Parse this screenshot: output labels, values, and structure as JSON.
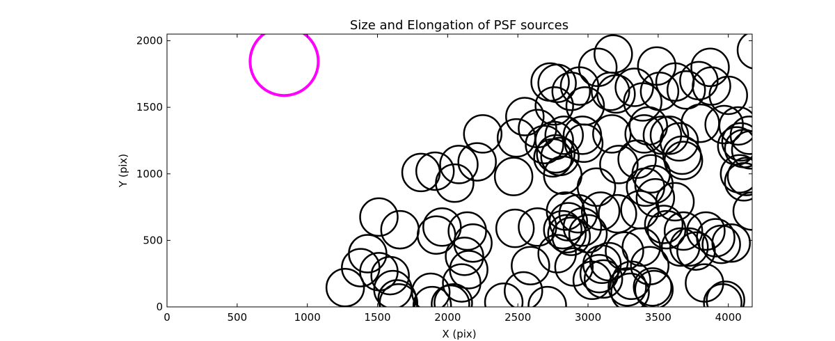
{
  "chart_data": {
    "type": "scatter",
    "title": "Size and Elongation of PSF sources",
    "xlabel": "X (pix)",
    "ylabel": "Y (pix)",
    "xlim": [
      0,
      4170
    ],
    "ylim": [
      0,
      2050
    ],
    "xticks": [
      0,
      500,
      1000,
      1500,
      2000,
      2500,
      3000,
      3500,
      4000
    ],
    "yticks": [
      0,
      500,
      1000,
      1500,
      2000
    ],
    "grid": false,
    "marker": "open-circle",
    "series": [
      {
        "color": "#000000",
        "points": [
          [
            1270,
            145
          ],
          [
            1380,
            295
          ],
          [
            1430,
            400
          ],
          [
            1510,
            675
          ],
          [
            1510,
            265
          ],
          [
            1590,
            235
          ],
          [
            1610,
            130
          ],
          [
            1640,
            60
          ],
          [
            1650,
            30
          ],
          [
            1660,
            580
          ],
          [
            1810,
            1010
          ],
          [
            1880,
            110
          ],
          [
            1890,
            10
          ],
          [
            1910,
            1020
          ],
          [
            1920,
            540
          ],
          [
            1960,
            600
          ],
          [
            2020,
            20
          ],
          [
            2040,
            30
          ],
          [
            2050,
            930
          ],
          [
            2080,
            1070
          ],
          [
            2100,
            180
          ],
          [
            2120,
            380
          ],
          [
            2140,
            570
          ],
          [
            2150,
            280
          ],
          [
            2180,
            480
          ],
          [
            2210,
            1090
          ],
          [
            2250,
            1300
          ],
          [
            2400,
            35
          ],
          [
            2470,
            980
          ],
          [
            2480,
            590
          ],
          [
            2490,
            1270
          ],
          [
            2540,
            120
          ],
          [
            2550,
            1430
          ],
          [
            2590,
            310
          ],
          [
            2640,
            1340
          ],
          [
            2640,
            600
          ],
          [
            2690,
            1220
          ],
          [
            2710,
            10
          ],
          [
            2730,
            1690
          ],
          [
            2750,
            1120
          ],
          [
            2760,
            1250
          ],
          [
            2770,
            1150
          ],
          [
            2760,
            1510
          ],
          [
            2780,
            400
          ],
          [
            2780,
            1680
          ],
          [
            2800,
            1130
          ],
          [
            2820,
            580
          ],
          [
            2820,
            990
          ],
          [
            2830,
            1290
          ],
          [
            2840,
            720
          ],
          [
            2850,
            550
          ],
          [
            2860,
            640
          ],
          [
            2880,
            530
          ],
          [
            2880,
            1620
          ],
          [
            2900,
            300
          ],
          [
            2930,
            700
          ],
          [
            2940,
            1660
          ],
          [
            2960,
            600
          ],
          [
            2960,
            1290
          ],
          [
            2970,
            1230
          ],
          [
            2980,
            1510
          ],
          [
            3000,
            550
          ],
          [
            3030,
            200
          ],
          [
            3060,
            900
          ],
          [
            3070,
            1800
          ],
          [
            3080,
            250
          ],
          [
            3090,
            720
          ],
          [
            3100,
            320
          ],
          [
            3110,
            210
          ],
          [
            3150,
            340
          ],
          [
            3160,
            1620
          ],
          [
            3170,
            1300
          ],
          [
            3180,
            1900
          ],
          [
            3200,
            1600
          ],
          [
            3210,
            700
          ],
          [
            3220,
            1070
          ],
          [
            3260,
            420
          ],
          [
            3280,
            150
          ],
          [
            3300,
            110
          ],
          [
            3310,
            200
          ],
          [
            3330,
            1650
          ],
          [
            3350,
            1110
          ],
          [
            3370,
            730
          ],
          [
            3380,
            450
          ],
          [
            3390,
            1540
          ],
          [
            3400,
            1300
          ],
          [
            3410,
            900
          ],
          [
            3430,
            1360
          ],
          [
            3440,
            310
          ],
          [
            3450,
            1000
          ],
          [
            3460,
            150
          ],
          [
            3470,
            920
          ],
          [
            3470,
            130
          ],
          [
            3480,
            820
          ],
          [
            3490,
            1810
          ],
          [
            3510,
            1620
          ],
          [
            3530,
            1290
          ],
          [
            3540,
            620
          ],
          [
            3560,
            580
          ],
          [
            3580,
            1290
          ],
          [
            3620,
            790
          ],
          [
            3620,
            1690
          ],
          [
            3650,
            1240
          ],
          [
            3660,
            450
          ],
          [
            3670,
            1140
          ],
          [
            3680,
            1100
          ],
          [
            3680,
            570
          ],
          [
            3700,
            1630
          ],
          [
            3720,
            450
          ],
          [
            3770,
            420
          ],
          [
            3790,
            1700
          ],
          [
            3800,
            1380
          ],
          [
            3830,
            180
          ],
          [
            3840,
            570
          ],
          [
            3870,
            1800
          ],
          [
            3880,
            1660
          ],
          [
            3910,
            520
          ],
          [
            3950,
            470
          ],
          [
            3960,
            30
          ],
          [
            3970,
            1370
          ],
          [
            3980,
            50
          ],
          [
            4000,
            1590
          ],
          [
            4020,
            480
          ],
          [
            4060,
            1210
          ],
          [
            4070,
            1360
          ],
          [
            4080,
            1000
          ],
          [
            4090,
            1240
          ],
          [
            4110,
            940
          ],
          [
            4110,
            1190
          ],
          [
            4130,
            980
          ],
          [
            4150,
            1290
          ],
          [
            4160,
            1180
          ],
          [
            4170,
            720
          ],
          [
            4200,
            1930
          ]
        ]
      },
      {
        "color": "#ff00ff",
        "points": [
          [
            835,
            1845
          ]
        ]
      }
    ]
  }
}
